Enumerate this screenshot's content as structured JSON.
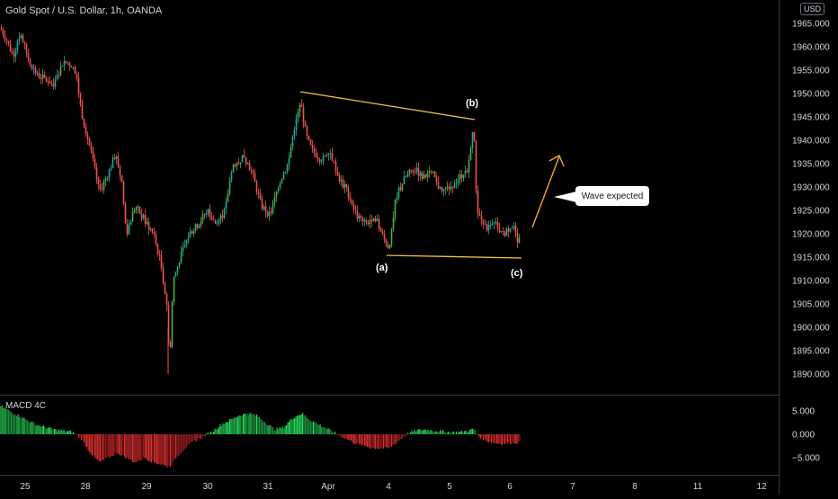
{
  "header": {
    "symbol_title": "Gold Spot / U.S. Dollar, 1h, OANDA",
    "currency": "USD"
  },
  "annotations": {
    "callout_text": "Wave expected",
    "wave_a": "(a)",
    "wave_b": "(b)",
    "wave_c": "(c)"
  },
  "colors": {
    "up": "#26a69a",
    "up_bright": "#4caf50",
    "down": "#ef5350",
    "trendline": "#f0c24b",
    "arrow": "#f5a623",
    "axis_text": "#d1d4dc",
    "divider": "#363a45"
  },
  "chart_data": [
    {
      "type": "candlestick",
      "title": "Gold Spot / U.S. Dollar, 1h, OANDA",
      "y_axis": {
        "ticks": [
          "1965.000",
          "1960.000",
          "1955.000",
          "1950.000",
          "1945.000",
          "1940.000",
          "1935.000",
          "1930.000",
          "1925.000",
          "1920.000",
          "1915.000",
          "1910.000",
          "1905.000",
          "1900.000",
          "1895.000",
          "1890.000"
        ],
        "range": [
          1887,
          1967
        ]
      },
      "x_axis": {
        "ticks": [
          "25",
          "28",
          "29",
          "30",
          "31",
          "Apr",
          "4",
          "5",
          "6",
          "7",
          "8",
          "11",
          "12"
        ]
      },
      "price_path": [
        [
          0,
          1964
        ],
        [
          8,
          1961
        ],
        [
          14,
          1958
        ],
        [
          22,
          1963
        ],
        [
          30,
          1958
        ],
        [
          40,
          1954
        ],
        [
          50,
          1953
        ],
        [
          60,
          1952
        ],
        [
          70,
          1957
        ],
        [
          80,
          1956
        ],
        [
          85,
          1953
        ],
        [
          90,
          1946
        ],
        [
          100,
          1938
        ],
        [
          110,
          1929
        ],
        [
          120,
          1933
        ],
        [
          128,
          1937
        ],
        [
          135,
          1931
        ],
        [
          140,
          1920
        ],
        [
          150,
          1926
        ],
        [
          160,
          1923
        ],
        [
          170,
          1920
        ],
        [
          178,
          1914
        ],
        [
          185,
          1905
        ],
        [
          188,
          1892
        ],
        [
          192,
          1910
        ],
        [
          200,
          1915
        ],
        [
          210,
          1920
        ],
        [
          220,
          1922
        ],
        [
          230,
          1925
        ],
        [
          240,
          1922
        ],
        [
          250,
          1925
        ],
        [
          258,
          1935
        ],
        [
          262,
          1934
        ],
        [
          270,
          1937
        ],
        [
          280,
          1933
        ],
        [
          290,
          1926
        ],
        [
          300,
          1924
        ],
        [
          310,
          1931
        ],
        [
          320,
          1935
        ],
        [
          326,
          1942
        ],
        [
          334,
          1948
        ],
        [
          340,
          1941
        ],
        [
          346,
          1938
        ],
        [
          356,
          1936
        ],
        [
          366,
          1938
        ],
        [
          376,
          1932
        ],
        [
          386,
          1929
        ],
        [
          396,
          1924
        ],
        [
          406,
          1922
        ],
        [
          416,
          1924
        ],
        [
          426,
          1919
        ],
        [
          432,
          1917
        ],
        [
          440,
          1928
        ],
        [
          450,
          1932
        ],
        [
          460,
          1934
        ],
        [
          470,
          1932
        ],
        [
          480,
          1933
        ],
        [
          490,
          1929
        ],
        [
          500,
          1930
        ],
        [
          510,
          1932
        ],
        [
          520,
          1934
        ],
        [
          526,
          1944
        ],
        [
          530,
          1925
        ],
        [
          540,
          1921
        ],
        [
          550,
          1922
        ],
        [
          560,
          1920
        ],
        [
          570,
          1922
        ],
        [
          576,
          1917
        ],
        [
          578,
          1922
        ]
      ],
      "annotations": [
        {
          "label": "(a)",
          "y": 1916
        },
        {
          "label": "(b)",
          "y": 1945
        },
        {
          "label": "(c)",
          "y": 1915
        },
        {
          "label": "Wave expected"
        }
      ]
    },
    {
      "type": "bar",
      "title": "MACD 4C",
      "y_axis": {
        "ticks": [
          "5.000",
          "0.000",
          "−5.000"
        ],
        "range": [
          -8,
          8
        ]
      },
      "macd_path": [
        [
          0,
          6
        ],
        [
          20,
          4
        ],
        [
          40,
          2
        ],
        [
          60,
          1
        ],
        [
          80,
          0.5
        ],
        [
          90,
          -1
        ],
        [
          100,
          -4
        ],
        [
          110,
          -6
        ],
        [
          120,
          -5
        ],
        [
          130,
          -4
        ],
        [
          140,
          -5
        ],
        [
          150,
          -6
        ],
        [
          160,
          -5
        ],
        [
          170,
          -6
        ],
        [
          180,
          -6.5
        ],
        [
          188,
          -7
        ],
        [
          195,
          -5
        ],
        [
          205,
          -3
        ],
        [
          215,
          -1.5
        ],
        [
          225,
          -0.5
        ],
        [
          235,
          0.5
        ],
        [
          245,
          2
        ],
        [
          255,
          3
        ],
        [
          265,
          4
        ],
        [
          275,
          4.5
        ],
        [
          285,
          4
        ],
        [
          295,
          2.5
        ],
        [
          305,
          1
        ],
        [
          315,
          1.5
        ],
        [
          325,
          3.5
        ],
        [
          335,
          4.5
        ],
        [
          345,
          3
        ],
        [
          355,
          2
        ],
        [
          365,
          1
        ],
        [
          375,
          0
        ],
        [
          385,
          -1
        ],
        [
          395,
          -2
        ],
        [
          405,
          -2.5
        ],
        [
          415,
          -3
        ],
        [
          425,
          -3
        ],
        [
          432,
          -3
        ],
        [
          442,
          -1.5
        ],
        [
          452,
          0
        ],
        [
          462,
          0.8
        ],
        [
          472,
          1
        ],
        [
          482,
          0.8
        ],
        [
          492,
          0.6
        ],
        [
          502,
          0.4
        ],
        [
          512,
          0.5
        ],
        [
          522,
          0.8
        ],
        [
          526,
          1.2
        ],
        [
          532,
          -0.5
        ],
        [
          542,
          -1.5
        ],
        [
          552,
          -2
        ],
        [
          562,
          -2
        ],
        [
          572,
          -1.8
        ],
        [
          578,
          -1.8
        ]
      ]
    }
  ]
}
